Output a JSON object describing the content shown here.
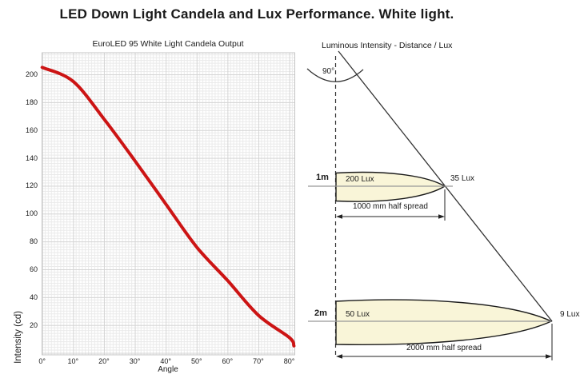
{
  "page": {
    "title": "LED Down Light Candela and Lux Performance. White light."
  },
  "chart": {
    "title": "EuroLED 95 White Light Candela Output",
    "xlabel": "Angle",
    "ylabel": "Intensity (cd)"
  },
  "chart_data": {
    "type": "line",
    "title": "EuroLED 95 White Light Candela Output",
    "xlabel": "Angle",
    "ylabel": "Intensity (cd)",
    "xlim": [
      0,
      81.6
    ],
    "ylim": [
      0,
      215
    ],
    "grid": "minor and major gridlines on",
    "legend": "none",
    "x_ticks": [
      0,
      10,
      20,
      30,
      40,
      50,
      60,
      70,
      80
    ],
    "x_tick_labels": [
      "0°",
      "10°",
      "20°",
      "30°",
      "40°",
      "50°",
      "60°",
      "70°",
      "80°"
    ],
    "y_ticks": [
      20,
      40,
      60,
      80,
      100,
      120,
      140,
      160,
      180,
      200
    ],
    "y_tick_labels": [
      "20",
      "40",
      "60",
      "80",
      "100",
      "120",
      "140",
      "160",
      "180",
      "200"
    ],
    "series": [
      {
        "name": "EuroLED 95 White Light Candela Output",
        "color": "#cc1414",
        "points": [
          [
            0,
            205
          ],
          [
            10,
            195
          ],
          [
            20,
            168
          ],
          [
            30,
            138
          ],
          [
            40,
            107
          ],
          [
            50,
            76
          ],
          [
            60,
            52
          ],
          [
            70,
            27
          ],
          [
            80,
            11
          ],
          [
            81.5,
            5
          ]
        ]
      }
    ]
  },
  "diagram": {
    "title": "Luminous Intensity - Distance / Lux",
    "beam_angle": "90°",
    "rows": [
      {
        "distance": "1m",
        "center_lux": "200 Lux",
        "edge_lux": "35 Lux",
        "spread": "1000 mm half spread"
      },
      {
        "distance": "2m",
        "center_lux": "50 Lux",
        "edge_lux": "9 Lux",
        "spread": "2000 mm half spread"
      }
    ]
  },
  "colors": {
    "curve": "#cc1414",
    "beam_fill": "#f9f5d8",
    "outline": "#1a1a1a",
    "level_line": "#999999",
    "grid_minor": "#eaeaea",
    "grid_major": "#d4d4d4",
    "plot_border": "#c4c4c4"
  }
}
